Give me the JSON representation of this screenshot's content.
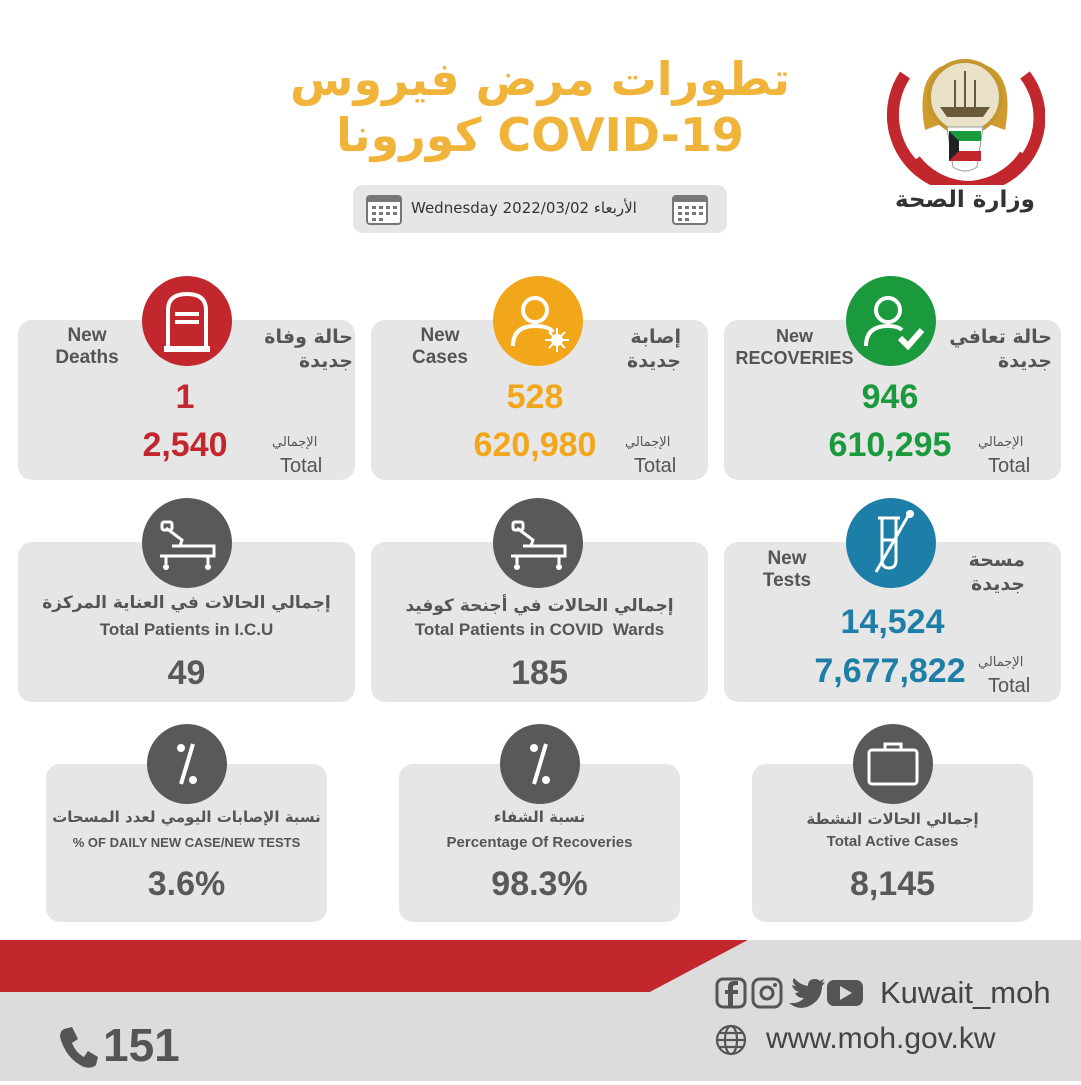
{
  "header": {
    "title_line1": "تطورات مرض فيروس",
    "title_line2": "كورونا COVID-19",
    "ministry": "وزارة الصحة",
    "date_text": "Wednesday 2022/03/02  الأربعاء",
    "colors": {
      "title": "#f0b43a",
      "red": "#c1272d"
    }
  },
  "cards": {
    "recoveries": {
      "label_ar": "حالة تعافي جديدة",
      "label_en": "New RECOVERIES",
      "value": "946",
      "total_ar": "الإجمالي",
      "total_en": "Total",
      "total": "610,295",
      "color": "#1a9a3c",
      "icon": "user-check-icon"
    },
    "cases": {
      "label_ar": "إصابة جديدة",
      "label_en": "New Cases",
      "value": "528",
      "total_ar": "الإجمالي",
      "total_en": "Total",
      "total": "620,980",
      "color": "#f2a71b",
      "icon": "user-virus-icon"
    },
    "deaths": {
      "label_ar": "حالة وفاة جديدة",
      "label_en": "New Deaths",
      "value": "1",
      "total_ar": "الإجمالي",
      "total_en": "Total",
      "total": "2,540",
      "color": "#c1272d",
      "icon": "tombstone-icon"
    },
    "tests": {
      "label_ar": "مسحة جديدة",
      "label_en": "New Tests",
      "value": "14,524",
      "total_ar": "الإجمالي",
      "total_en": "Total",
      "total": "7,677,822",
      "color": "#1d7ea8",
      "icon": "test-tube-icon"
    },
    "wards": {
      "label_ar": "إجمالي الحالات في أجنحة كوفيد",
      "label_en": "Total Patients in COVID  Wards",
      "value": "185",
      "icon": "hospital-bed-icon"
    },
    "icu": {
      "label_ar": "إجمالي الحالات في العناية المركزة",
      "label_en": "Total Patients in I.C.U",
      "value": "49",
      "icon": "hospital-bed-icon"
    },
    "active": {
      "label_ar": "إجمالي الحالات النشطة",
      "label_en": "Total Active Cases",
      "value": "8,145",
      "icon": "medical-kit-icon"
    },
    "recovery_pct": {
      "label_ar": "نسبة الشفاء",
      "label_en": "Percentage Of Recoveries",
      "value": "98.3%",
      "icon": "percent-icon"
    },
    "daily_pct": {
      "label_ar": "نسبة الإصابات اليومي لعدد المسحات",
      "label_en": "% OF DAILY NEW CASE/NEW TESTS",
      "value": "3.6%",
      "icon": "percent-icon"
    }
  },
  "footer": {
    "social_handle": "Kuwait_moh",
    "website": "www.moh.gov.kw",
    "hotline": "151"
  }
}
